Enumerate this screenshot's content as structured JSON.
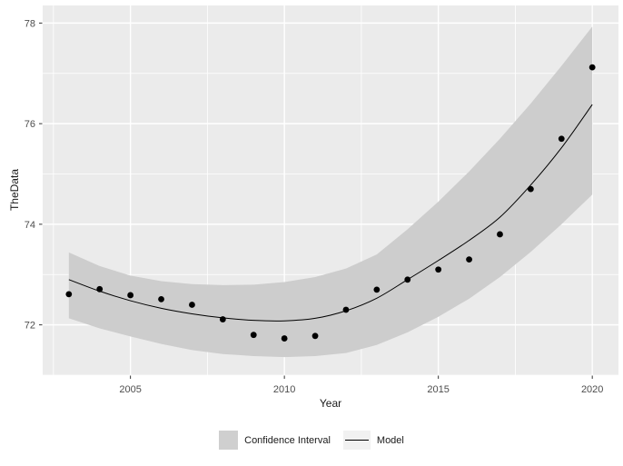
{
  "figure": {
    "x_axis_title": "Year",
    "y_axis_title": "TheData"
  },
  "legend": {
    "items": [
      {
        "key": "ribbon-swatch",
        "label": "Confidence Interval"
      },
      {
        "key": "line-key",
        "label": "Model"
      }
    ]
  },
  "colors": {
    "page_bg": "#FFFFFF",
    "panel_bg": "#EBEBEB",
    "grid": "#FFFFFF",
    "band": "#CDCDCD",
    "model_line": "#000000",
    "point": "#000000",
    "tick_mark": "#333333",
    "tick_label": "#4D4D4D",
    "axis_title": "#1A1A1A",
    "legend_swatch": "#CFCFCF",
    "legend_key_bg": "#F1F1F1"
  },
  "chart_data": {
    "type": "scatter",
    "title": "",
    "xlabel": "Year",
    "ylabel": "TheData",
    "x": [
      2003,
      2004,
      2005,
      2006,
      2007,
      2008,
      2009,
      2010,
      2011,
      2012,
      2013,
      2014,
      2015,
      2016,
      2017,
      2018,
      2019,
      2020
    ],
    "series": [
      {
        "name": "TheData points",
        "type": "scatter",
        "values": [
          72.61,
          72.71,
          72.59,
          72.51,
          72.4,
          72.11,
          71.8,
          71.73,
          71.78,
          72.3,
          72.7,
          72.9,
          73.1,
          73.3,
          73.8,
          74.7,
          75.7,
          77.12
        ]
      },
      {
        "name": "Model",
        "type": "line",
        "values": [
          72.9,
          72.67,
          72.48,
          72.33,
          72.22,
          72.14,
          72.09,
          72.08,
          72.13,
          72.28,
          72.53,
          72.9,
          73.28,
          73.68,
          74.14,
          74.78,
          75.52,
          76.38
        ]
      },
      {
        "name": "Confidence Interval",
        "type": "area",
        "lower": [
          72.13,
          71.93,
          71.77,
          71.62,
          71.5,
          71.42,
          71.38,
          71.36,
          71.38,
          71.44,
          71.6,
          71.85,
          72.16,
          72.52,
          72.95,
          73.45,
          74.0,
          74.59
        ],
        "upper": [
          73.44,
          73.17,
          72.98,
          72.87,
          72.81,
          72.79,
          72.8,
          72.85,
          72.95,
          73.12,
          73.4,
          73.9,
          74.45,
          75.05,
          75.7,
          76.4,
          77.15,
          77.93
        ]
      }
    ],
    "xticks": {
      "values": [
        2005,
        2010,
        2015,
        2020
      ],
      "labels": [
        "2005",
        "2010",
        "2015",
        "2020"
      ]
    },
    "yticks": {
      "values": [
        72,
        74,
        76,
        78
      ],
      "labels": [
        "72",
        "74",
        "76",
        "78"
      ]
    },
    "x_minor": [
      2002.5,
      2007.5,
      2012.5,
      2017.5
    ],
    "y_minor": [
      71,
      73,
      75,
      77
    ],
    "xlim": [
      2002.15,
      2020.85
    ],
    "ylim": [
      71.0,
      78.35
    ],
    "grid": true,
    "legend_position": "bottom"
  }
}
